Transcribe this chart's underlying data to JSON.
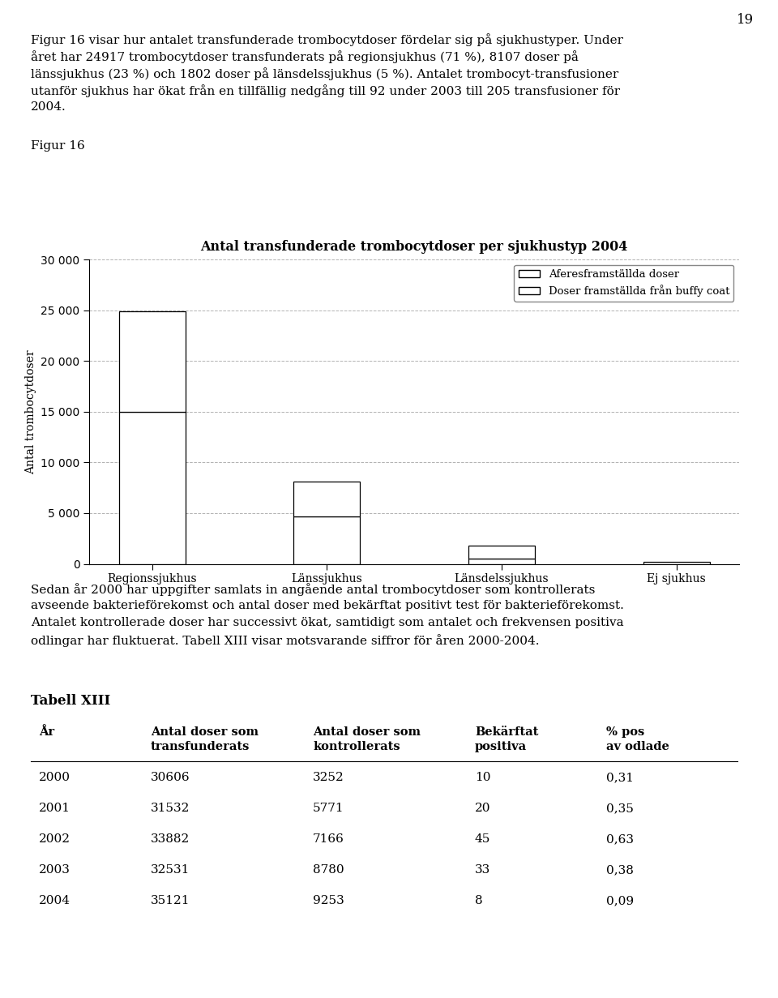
{
  "page_number": "19",
  "intro_lines": [
    "Figur 16 visar hur antalet transfunderade trombocytdoser fördelar sig på sjukhustyper. Under",
    "året har 24917 trombocytdoser transfunderats på regionsjukhus (71 %), 8107 doser på",
    "länssjukhus (23 %) och 1802 doser på länsdelssjukhus (5 %). Antalet trombocyt-transfusioner",
    "utanför sjukhus har ökat från en tillfällig nedgång till 92 under 2003 till 205 transfusioner för",
    "2004."
  ],
  "figur_label": "Figur 16",
  "chart_title": "Antal transfunderade trombocytdoser per sjukhustyp 2004",
  "ylabel": "Antal trombocytdoser",
  "categories": [
    "Regionssjukhus",
    "Länssjukhus",
    "Länsdelssjukhus",
    "Ej sjukhus"
  ],
  "aferes_values": [
    15000,
    4700,
    550,
    0
  ],
  "buffy_values": [
    9917,
    3407,
    1252,
    205
  ],
  "ylim": [
    0,
    30000
  ],
  "yticks": [
    0,
    5000,
    10000,
    15000,
    20000,
    25000,
    30000
  ],
  "legend_aferes": "Aferesframställda doser",
  "legend_buffy": "Doser framställda från buffy coat",
  "body_lines": [
    "Sedan år 2000 har uppgifter samlats in angående antal trombocytdoser som kontrollerats",
    "avseende bakterieförekomst och antal doser med bekärftat positivt test för bakterieförekomst.",
    "Antalet kontrollerade doser har successivt ökat, samtidigt som antalet och frekvensen positiva",
    "odlingar har fluktuerat. Tabell XIII visar motsvarande siffror för åren 2000-2004."
  ],
  "table_title": "Tabell XIII",
  "table_col_headers": [
    "År",
    "Antal doser som\ntransfunderats",
    "Antal doser som\nkontrollerats",
    "Bekärftat\npositiva",
    "% pos\nav odlade"
  ],
  "table_rows": [
    [
      "2000",
      "30606",
      "3252",
      "10",
      "0,31"
    ],
    [
      "2001",
      "31532",
      "5771",
      "20",
      "0,35"
    ],
    [
      "2002",
      "33882",
      "7166",
      "45",
      "0,63"
    ],
    [
      "2003",
      "32531",
      "8780",
      "33",
      "0,38"
    ],
    [
      "2004",
      "35121",
      "9253",
      "8",
      "0,09"
    ]
  ],
  "bar_facecolor": "#ffffff",
  "bar_edgecolor": "#000000",
  "background_color": "#ffffff",
  "text_color": "#000000",
  "grid_color": "#aaaaaa",
  "bar_width": 0.38
}
